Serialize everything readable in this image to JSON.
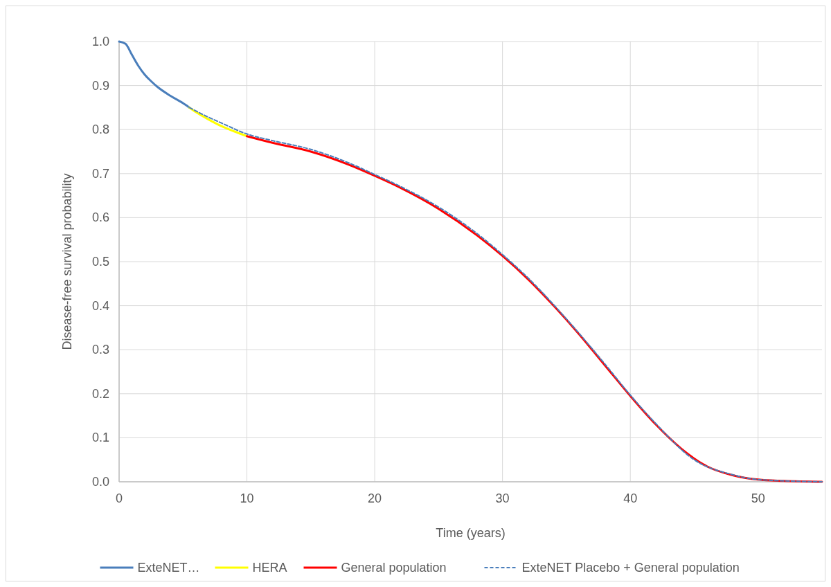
{
  "chart_data": {
    "type": "line",
    "xlabel": "Time (years)",
    "ylabel": "Disease-free survival probability",
    "xlim": [
      0,
      55
    ],
    "xticks": [
      0,
      10,
      20,
      30,
      40,
      50
    ],
    "ylim": [
      0,
      1
    ],
    "yticks": [
      {
        "value": 0,
        "label": "0.0"
      },
      {
        "value": 0.1,
        "label": "0.1"
      },
      {
        "value": 0.2,
        "label": "0.2"
      },
      {
        "value": 0.3,
        "label": "0.3"
      },
      {
        "value": 0.4,
        "label": "0.4"
      },
      {
        "value": 0.5,
        "label": "0.5"
      },
      {
        "value": 0.6,
        "label": "0.6"
      },
      {
        "value": 0.7,
        "label": "0.7"
      },
      {
        "value": 0.8,
        "label": "0.8"
      },
      {
        "value": 0.9,
        "label": "0.9"
      },
      {
        "value": 1,
        "label": "1.0"
      }
    ],
    "grid": true,
    "legend": "bottom",
    "series": [
      {
        "name": "ExteNET…",
        "color": "#4a7ebb",
        "line_style": "solid",
        "x": [
          0,
          0.5,
          1,
          1.5,
          2,
          2.5,
          3,
          4,
          5,
          5.5
        ],
        "values": [
          1,
          0.995,
          0.97,
          0.945,
          0.925,
          0.91,
          0.897,
          0.877,
          0.86,
          0.85
        ]
      },
      {
        "name": "HERA",
        "color": "#ffff00",
        "line_style": "solid",
        "x": [
          5.5,
          6,
          7,
          8,
          9,
          10
        ],
        "values": [
          0.85,
          0.84,
          0.823,
          0.808,
          0.796,
          0.785
        ]
      },
      {
        "name": "General population",
        "color": "#ff0000",
        "line_style": "solid",
        "x": [
          10,
          12,
          15,
          18,
          20,
          22,
          25,
          28,
          30,
          32,
          34,
          36,
          38,
          40,
          42,
          44,
          46,
          48,
          50,
          52,
          55
        ],
        "values": [
          0.785,
          0.77,
          0.75,
          0.72,
          0.695,
          0.668,
          0.62,
          0.56,
          0.513,
          0.46,
          0.4,
          0.335,
          0.265,
          0.195,
          0.13,
          0.075,
          0.035,
          0.015,
          0.005,
          0.002,
          0
        ]
      },
      {
        "name": "ExteNET Placebo + General population",
        "color": "#4a7ebb",
        "line_style": "dashed",
        "x": [
          5.5,
          7,
          8,
          10,
          12,
          15,
          18,
          20,
          22,
          25,
          28,
          30,
          32,
          35,
          38,
          40,
          42,
          45,
          48,
          50,
          55
        ],
        "values": [
          0.85,
          0.828,
          0.815,
          0.79,
          0.775,
          0.755,
          0.724,
          0.698,
          0.671,
          0.624,
          0.564,
          0.516,
          0.463,
          0.37,
          0.268,
          0.197,
          0.132,
          0.05,
          0.016,
          0.005,
          0
        ]
      }
    ]
  }
}
